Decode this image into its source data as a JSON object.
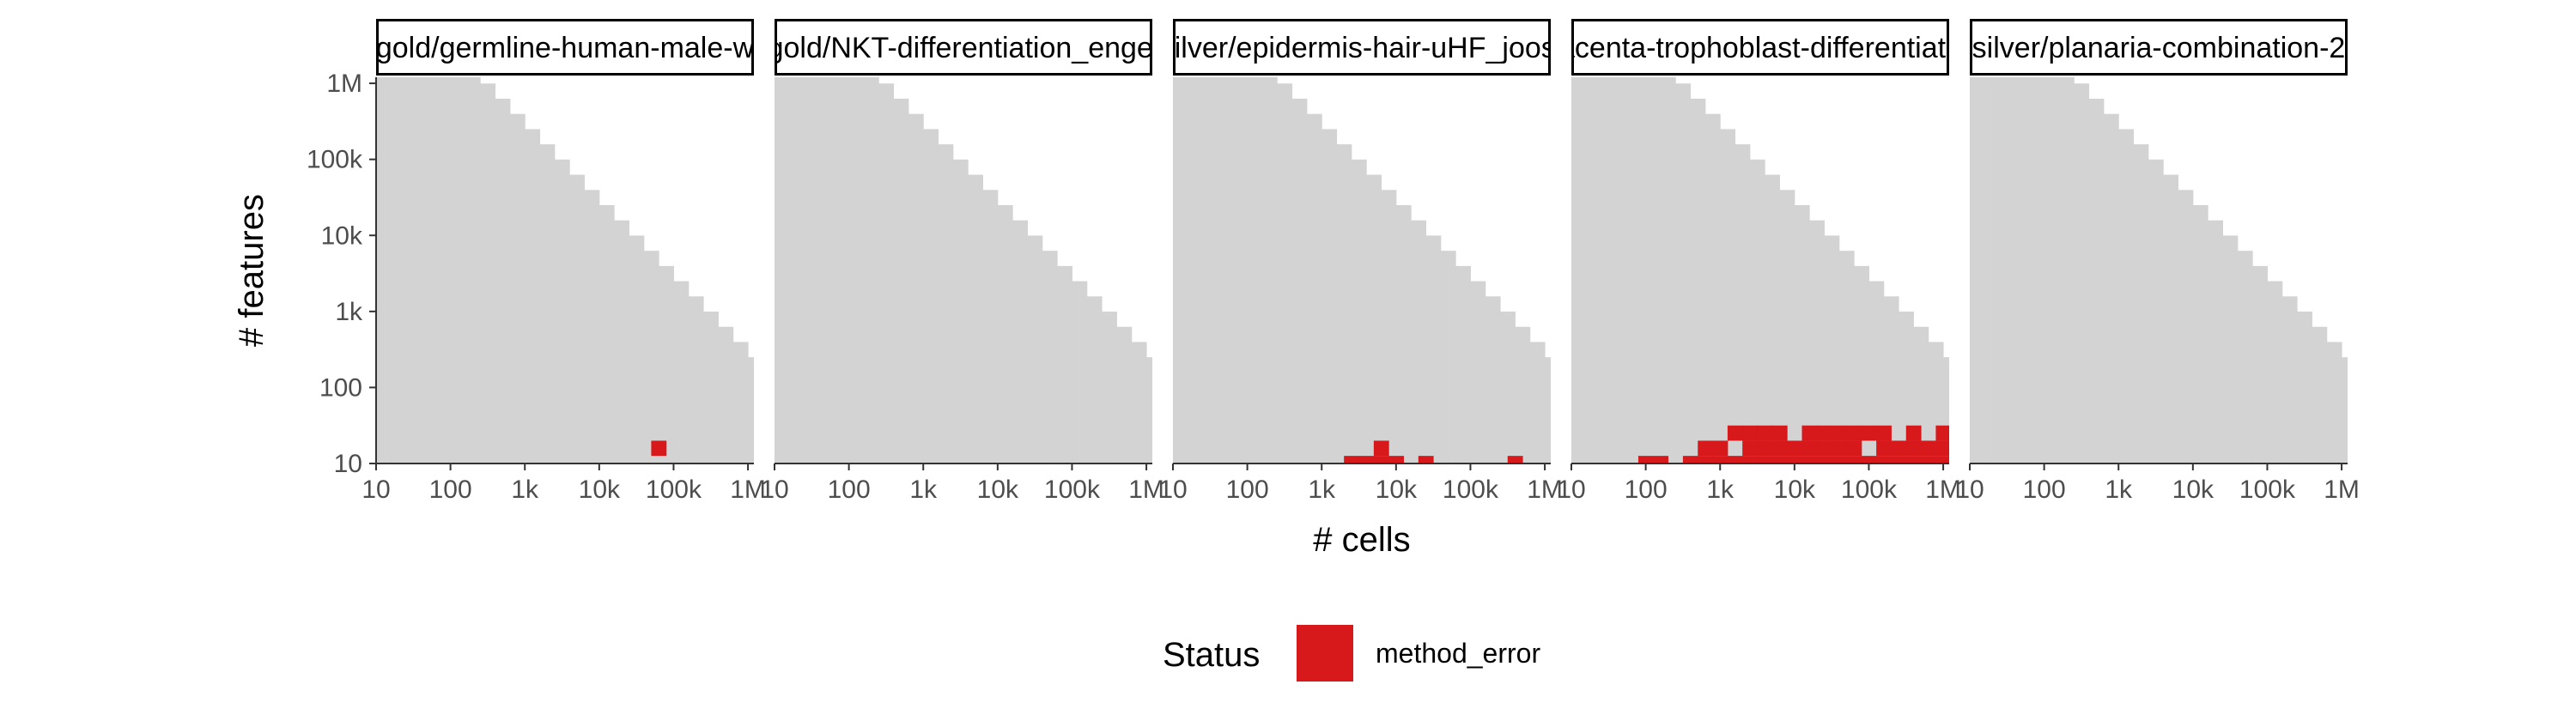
{
  "chart_data": {
    "type": "heatmap",
    "facets": [
      {
        "title": "gold/germline-human-male-w",
        "error_cells": [
          [
            63000,
            15.85
          ]
        ]
      },
      {
        "title": "gold/NKT-differentiation_engel",
        "error_cells": []
      },
      {
        "title": "silver/epidermis-hair-uHF_joost",
        "error_cells": [
          [
            2510,
            10
          ],
          [
            3980,
            10
          ],
          [
            6310,
            10
          ],
          [
            6310,
            15.85
          ],
          [
            10000,
            10
          ],
          [
            25100,
            10
          ],
          [
            398000,
            10
          ]
        ]
      },
      {
        "title": "placenta-trophoblast-differentiation",
        "error_cells": [
          [
            100,
            10
          ],
          [
            158,
            10
          ],
          [
            398,
            10
          ],
          [
            631,
            10
          ],
          [
            631,
            15.85
          ],
          [
            1000,
            10
          ],
          [
            1000,
            15.85
          ],
          [
            1585,
            10
          ],
          [
            1585,
            25.1
          ],
          [
            2510,
            10
          ],
          [
            2510,
            15.85
          ],
          [
            2510,
            25.1
          ],
          [
            3980,
            10
          ],
          [
            3980,
            15.85
          ],
          [
            3980,
            25.1
          ],
          [
            6310,
            10
          ],
          [
            6310,
            15.85
          ],
          [
            6310,
            25.1
          ],
          [
            10000,
            10
          ],
          [
            10000,
            15.85
          ],
          [
            15850,
            10
          ],
          [
            15850,
            15.85
          ],
          [
            15850,
            25.1
          ],
          [
            25100,
            10
          ],
          [
            25100,
            15.85
          ],
          [
            25100,
            25.1
          ],
          [
            39800,
            10
          ],
          [
            39800,
            15.85
          ],
          [
            39800,
            25.1
          ],
          [
            63100,
            10
          ],
          [
            63100,
            15.85
          ],
          [
            63100,
            25.1
          ],
          [
            100000,
            10
          ],
          [
            100000,
            25.1
          ],
          [
            158500,
            10
          ],
          [
            158500,
            15.85
          ],
          [
            158500,
            25.1
          ],
          [
            251000,
            10
          ],
          [
            251000,
            15.85
          ],
          [
            398000,
            10
          ],
          [
            398000,
            15.85
          ],
          [
            398000,
            25.1
          ],
          [
            631000,
            10
          ],
          [
            631000,
            15.85
          ],
          [
            1000000,
            10
          ],
          [
            1000000,
            15.85
          ],
          [
            1000000,
            25.1
          ]
        ]
      },
      {
        "title": "silver/planaria-combination-2",
        "error_cells": []
      }
    ],
    "xlabel": "# cells",
    "ylabel": "# features",
    "x_scale": "log10",
    "y_scale": "log10",
    "xlim": [
      10,
      1000000
    ],
    "ylim": [
      10,
      1000000
    ],
    "x_ticks": [
      "10",
      "100",
      "1k",
      "10k",
      "100k",
      "1M"
    ],
    "y_ticks": [
      "1M",
      "100k",
      "10k",
      "1k",
      "100",
      "10"
    ],
    "feasible_region": "cells × features ≤ 2.5e8 (grey)",
    "legend": {
      "title": "Status",
      "entries": [
        {
          "label": "method_error",
          "color": "#d7191c"
        }
      ],
      "position": "bottom"
    },
    "colors": {
      "feasible": "#d3d3d3",
      "method_error": "#d7191c"
    }
  }
}
